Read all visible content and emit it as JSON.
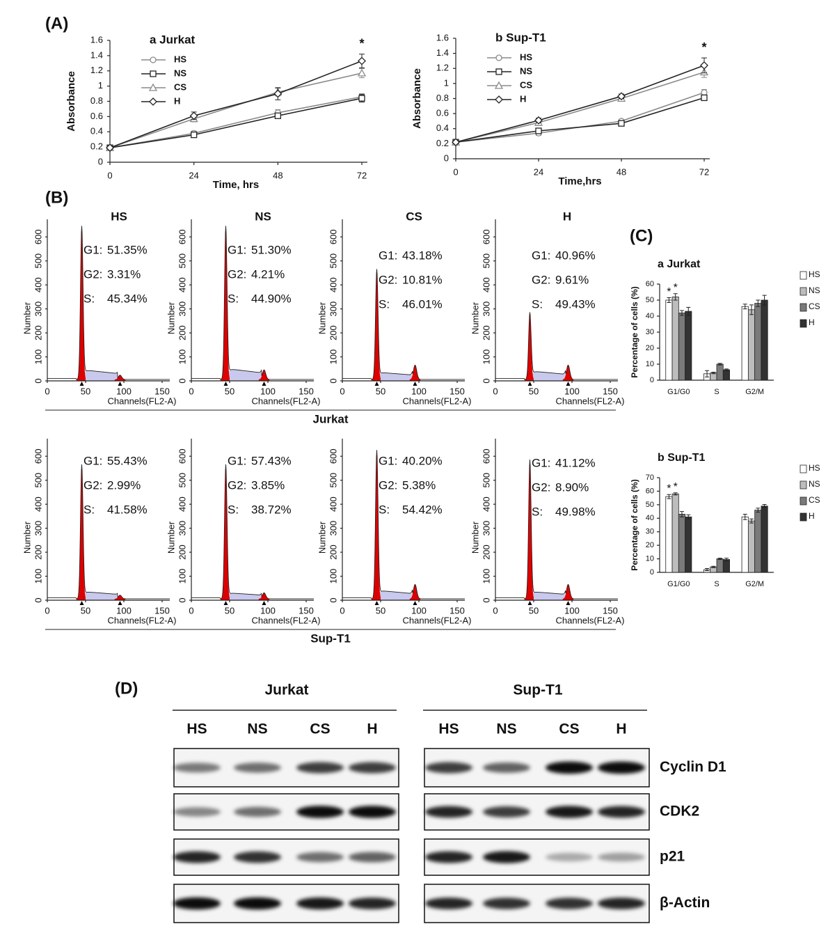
{
  "panel_labels": [
    "(A)",
    "(B)",
    "(C)",
    "(D)"
  ],
  "chart_data": [
    {
      "type": "line",
      "title": "a Jurkat",
      "xlabel": "Time, hrs",
      "ylabel": "Absorbance",
      "x": [
        0,
        24,
        48,
        72
      ],
      "xlim": [
        0,
        72
      ],
      "xticks": [
        0,
        24,
        48,
        72
      ],
      "ylim": [
        0,
        1.6
      ],
      "yticks": [
        0,
        0.2,
        0.4,
        0.6,
        0.8,
        1,
        1.2,
        1.4,
        1.6
      ],
      "annotation": "*",
      "series": [
        {
          "name": "HS",
          "color": "#8a8a8a",
          "marker": "circle",
          "values": [
            0.19,
            0.38,
            0.65,
            0.86
          ],
          "errors": [
            0.02,
            0.03,
            0.04,
            0.04
          ]
        },
        {
          "name": "NS",
          "color": "#222222",
          "marker": "square",
          "values": [
            0.19,
            0.36,
            0.61,
            0.84
          ],
          "errors": [
            0.02,
            0.03,
            0.03,
            0.05
          ]
        },
        {
          "name": "CS",
          "color": "#8a8a8a",
          "marker": "triangle",
          "values": [
            0.19,
            0.57,
            0.92,
            1.17
          ],
          "errors": [
            0.02,
            0.04,
            0.05,
            0.06
          ]
        },
        {
          "name": "H",
          "color": "#222222",
          "marker": "diamond",
          "values": [
            0.19,
            0.61,
            0.9,
            1.33
          ],
          "errors": [
            0.02,
            0.05,
            0.08,
            0.09
          ]
        }
      ]
    },
    {
      "type": "line",
      "title": "b Sup-T1",
      "xlabel": "Time,hrs",
      "ylabel": "Absorbance",
      "x": [
        0,
        24,
        48,
        72
      ],
      "xlim": [
        0,
        72
      ],
      "xticks": [
        0,
        24,
        48,
        72
      ],
      "ylim": [
        0,
        1.6
      ],
      "yticks": [
        0,
        0.2,
        0.4,
        0.6,
        0.8,
        1,
        1.2,
        1.4,
        1.6
      ],
      "annotation": "*",
      "series": [
        {
          "name": "HS",
          "color": "#8a8a8a",
          "marker": "circle",
          "values": [
            0.22,
            0.34,
            0.5,
            0.88
          ],
          "errors": [
            0.02,
            0.03,
            0.02,
            0.04
          ]
        },
        {
          "name": "NS",
          "color": "#222222",
          "marker": "square",
          "values": [
            0.22,
            0.37,
            0.47,
            0.81
          ],
          "errors": [
            0.02,
            0.03,
            0.02,
            0.03
          ]
        },
        {
          "name": "CS",
          "color": "#8a8a8a",
          "marker": "triangle",
          "values": [
            0.22,
            0.48,
            0.8,
            1.15
          ],
          "errors": [
            0.02,
            0.04,
            0.03,
            0.07
          ]
        },
        {
          "name": "H",
          "color": "#222222",
          "marker": "diamond",
          "values": [
            0.22,
            0.51,
            0.83,
            1.24
          ],
          "errors": [
            0.02,
            0.03,
            0.03,
            0.1
          ]
        }
      ]
    },
    {
      "type": "bar",
      "title": "a Jurkat",
      "ylabel": "Percentage of cells (%)",
      "categories": [
        "G1/G0",
        "S",
        "G2/M"
      ],
      "ylim": [
        0,
        60
      ],
      "yticks": [
        0,
        10,
        20,
        30,
        40,
        50,
        60
      ],
      "series": [
        {
          "name": "HS",
          "color": "#ffffff",
          "values": [
            50,
            4,
            46
          ],
          "errors": [
            1.5,
            2,
            1.5
          ],
          "marks": [
            "*",
            null,
            null
          ]
        },
        {
          "name": "NS",
          "color": "#bdbdbd",
          "values": [
            52,
            4.5,
            44
          ],
          "errors": [
            2,
            0.5,
            3
          ],
          "marks": [
            "*",
            null,
            null
          ]
        },
        {
          "name": "CS",
          "color": "#7a7a7a",
          "values": [
            42,
            10,
            48
          ],
          "errors": [
            1.5,
            0.5,
            2
          ]
        },
        {
          "name": "H",
          "color": "#333333",
          "values": [
            43,
            6.5,
            50
          ],
          "errors": [
            2.5,
            0.5,
            3
          ]
        }
      ]
    },
    {
      "type": "bar",
      "title": "b Sup-T1",
      "ylabel": "Percentage of cells (%)",
      "categories": [
        "G1/G0",
        "S",
        "G2/M"
      ],
      "ylim": [
        0,
        70
      ],
      "yticks": [
        0,
        10,
        20,
        30,
        40,
        50,
        60,
        70
      ],
      "series": [
        {
          "name": "HS",
          "color": "#ffffff",
          "values": [
            56,
            2,
            41
          ],
          "errors": [
            1.5,
            0.8,
            2
          ],
          "marks": [
            "*",
            null,
            null
          ]
        },
        {
          "name": "NS",
          "color": "#bdbdbd",
          "values": [
            58,
            4,
            38
          ],
          "errors": [
            0.8,
            0.5,
            1.5
          ],
          "marks": [
            "*",
            null,
            null
          ]
        },
        {
          "name": "CS",
          "color": "#7a7a7a",
          "values": [
            43,
            10,
            46
          ],
          "errors": [
            2,
            0.5,
            1.5
          ]
        },
        {
          "name": "H",
          "color": "#333333",
          "values": [
            41,
            9.5,
            49
          ],
          "errors": [
            1.5,
            1,
            1.2
          ]
        }
      ]
    }
  ],
  "flow": {
    "ylabel": "Number",
    "xlabel": "Channels(FL2-A)",
    "xlim": [
      0,
      160
    ],
    "xticks": [
      0,
      50,
      100,
      150
    ],
    "ylim": [
      0,
      650
    ],
    "yticks": [
      0,
      100,
      200,
      300,
      400,
      500,
      600
    ],
    "columns": [
      "HS",
      "NS",
      "CS",
      "H"
    ],
    "rows": [
      {
        "label": "Jurkat",
        "panels": [
          [
            {
              "label": "G1:",
              "value": "51.35%"
            },
            {
              "label": "G2:",
              "value": "3.31%"
            },
            {
              "label": "S:",
              "value": "45.34%"
            }
          ],
          [
            {
              "label": "G1:",
              "value": "51.30%"
            },
            {
              "label": "G2:",
              "value": "4.21%"
            },
            {
              "label": "S:",
              "value": "44.90%"
            }
          ],
          [
            {
              "label": "G1:",
              "value": "43.18%"
            },
            {
              "label": "G2:",
              "value": "10.81%"
            },
            {
              "label": "S:",
              "value": "46.01%"
            }
          ],
          [
            {
              "label": "G1:",
              "value": "40.96%"
            },
            {
              "label": "G2:",
              "value": "9.61%"
            },
            {
              "label": "S:",
              "value": "49.43%"
            }
          ]
        ]
      },
      {
        "label": "Sup-T1",
        "panels": [
          [
            {
              "label": "G1:",
              "value": "55.43%"
            },
            {
              "label": "G2:",
              "value": "2.99%"
            },
            {
              "label": "S:",
              "value": "41.58%"
            }
          ],
          [
            {
              "label": "G1:",
              "value": "57.43%"
            },
            {
              "label": "G2:",
              "value": "3.85%"
            },
            {
              "label": "S:",
              "value": "38.72%"
            }
          ],
          [
            {
              "label": "G1:",
              "value": "40.20%"
            },
            {
              "label": "G2:",
              "value": "5.38%"
            },
            {
              "label": "S:",
              "value": "54.42%"
            }
          ],
          [
            {
              "label": "G1:",
              "value": "41.12%"
            },
            {
              "label": "G2:",
              "value": "8.90%"
            },
            {
              "label": "S:",
              "value": "49.98%"
            }
          ]
        ]
      }
    ]
  },
  "blot": {
    "groups": [
      {
        "label": "Jurkat",
        "lanes": [
          "HS",
          "NS",
          "CS",
          "H"
        ]
      },
      {
        "label": "Sup-T1",
        "lanes": [
          "HS",
          "NS",
          "CS",
          "H"
        ]
      }
    ],
    "rows": [
      "Cyclin D1",
      "CDK2",
      "p21",
      "β-Actin"
    ]
  }
}
